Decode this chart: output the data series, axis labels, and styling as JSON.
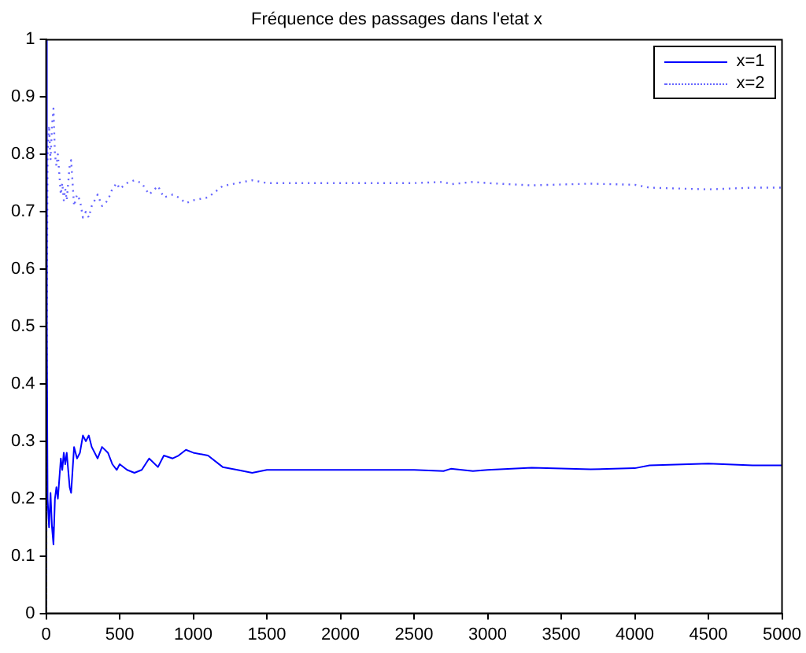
{
  "chart_data": {
    "type": "line",
    "title": "Fréquence des passages dans l'etat x",
    "xlim": [
      0,
      5000
    ],
    "xticks": [
      0,
      500,
      1000,
      1500,
      2000,
      2500,
      3000,
      3500,
      4000,
      4500,
      5000
    ],
    "ylim": [
      0,
      1
    ],
    "yticks": [
      0,
      0.1,
      0.2,
      0.3,
      0.4,
      0.5,
      0.6,
      0.7,
      0.8,
      0.9,
      1
    ],
    "grid": false,
    "legend": "top right",
    "marker": "none",
    "x": [
      1,
      5,
      10,
      20,
      30,
      40,
      50,
      60,
      70,
      80,
      100,
      110,
      120,
      130,
      140,
      160,
      170,
      190,
      210,
      230,
      250,
      270,
      290,
      310,
      350,
      380,
      420,
      450,
      480,
      500,
      550,
      600,
      650,
      700,
      760,
      800,
      860,
      900,
      950,
      1000,
      1100,
      1200,
      1300,
      1400,
      1500,
      1700,
      2000,
      2300,
      2500,
      2700,
      2750,
      2900,
      3000,
      3300,
      3700,
      4000,
      4100,
      4500,
      4800,
      5000
    ],
    "series": [
      {
        "name": "x=1",
        "color": "#0000ff",
        "line_style": "solid",
        "values": [
          1.0,
          0.5,
          0.2,
          0.15,
          0.21,
          0.15,
          0.12,
          0.2,
          0.22,
          0.2,
          0.27,
          0.25,
          0.28,
          0.26,
          0.28,
          0.22,
          0.21,
          0.29,
          0.27,
          0.28,
          0.31,
          0.3,
          0.31,
          0.29,
          0.27,
          0.29,
          0.28,
          0.26,
          0.25,
          0.26,
          0.25,
          0.245,
          0.25,
          0.27,
          0.255,
          0.275,
          0.27,
          0.275,
          0.285,
          0.28,
          0.275,
          0.255,
          0.25,
          0.245,
          0.25,
          0.25,
          0.25,
          0.25,
          0.25,
          0.248,
          0.252,
          0.248,
          0.25,
          0.254,
          0.251,
          0.253,
          0.258,
          0.261,
          0.258,
          0.258
        ]
      },
      {
        "name": "x=2",
        "color": "#6666ff",
        "line_style": "dotted",
        "values": [
          0.0,
          0.5,
          0.8,
          0.85,
          0.79,
          0.85,
          0.88,
          0.8,
          0.78,
          0.8,
          0.73,
          0.75,
          0.72,
          0.74,
          0.72,
          0.78,
          0.79,
          0.71,
          0.73,
          0.72,
          0.69,
          0.7,
          0.69,
          0.71,
          0.73,
          0.71,
          0.72,
          0.74,
          0.75,
          0.74,
          0.75,
          0.755,
          0.75,
          0.73,
          0.745,
          0.725,
          0.73,
          0.725,
          0.715,
          0.72,
          0.725,
          0.745,
          0.75,
          0.755,
          0.75,
          0.75,
          0.75,
          0.75,
          0.75,
          0.752,
          0.748,
          0.752,
          0.75,
          0.746,
          0.749,
          0.747,
          0.742,
          0.739,
          0.742,
          0.742
        ]
      }
    ]
  }
}
